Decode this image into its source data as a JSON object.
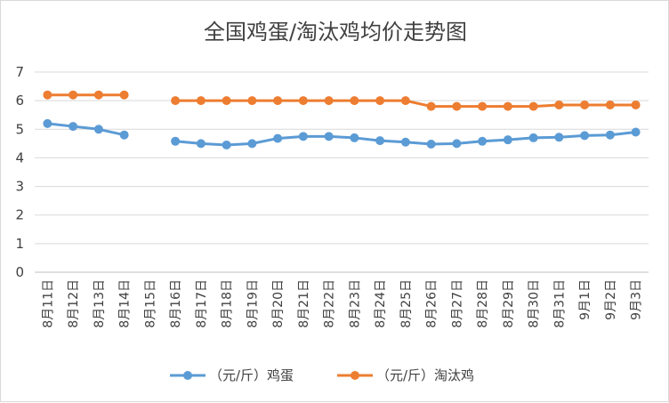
{
  "chart_data": {
    "type": "line",
    "title": "全国鸡蛋/淘汰鸡均价走势图",
    "xlabel": "",
    "ylabel": "",
    "categories": [
      "8月11日",
      "8月12日",
      "8月13日",
      "8月14日",
      "8月15日",
      "8月16日",
      "8月17日",
      "8月18日",
      "8月19日",
      "8月20日",
      "8月21日",
      "8月22日",
      "8月23日",
      "8月24日",
      "8月25日",
      "8月26日",
      "8月27日",
      "8月28日",
      "8月29日",
      "8月30日",
      "8月31日",
      "9月1日",
      "9月2日",
      "9月3日"
    ],
    "ylim": [
      0,
      7
    ],
    "yticks": [
      0,
      1,
      2,
      3,
      4,
      5,
      6,
      7
    ],
    "grid": true,
    "legend": "bottom",
    "series": [
      {
        "name": "（元/斤）鸡蛋",
        "color": "#5B9BD5",
        "values": [
          5.2,
          5.1,
          5.0,
          4.8,
          null,
          4.58,
          4.5,
          4.45,
          4.5,
          4.68,
          4.75,
          4.75,
          4.7,
          4.6,
          4.55,
          4.48,
          4.5,
          4.58,
          4.63,
          4.7,
          4.72,
          4.78,
          4.8,
          4.9
        ]
      },
      {
        "name": "（元/斤）淘汰鸡",
        "color": "#ED7D31",
        "values": [
          6.2,
          6.2,
          6.2,
          6.2,
          null,
          6.0,
          6.0,
          6.0,
          6.0,
          6.0,
          6.0,
          6.0,
          6.0,
          6.0,
          6.0,
          5.8,
          5.8,
          5.8,
          5.8,
          5.8,
          5.85,
          5.85,
          5.85,
          5.85
        ]
      }
    ]
  }
}
